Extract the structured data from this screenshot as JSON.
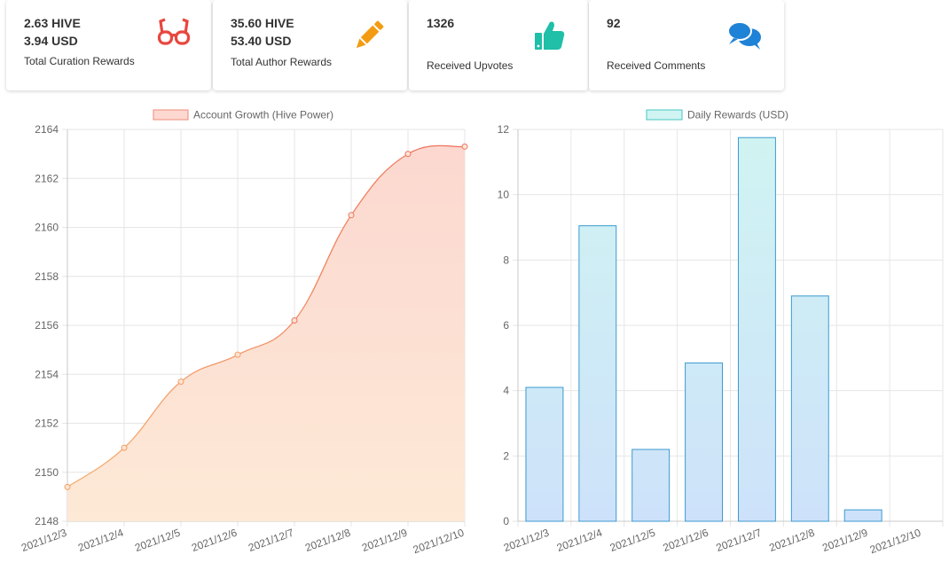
{
  "cards": {
    "curation": {
      "hive": "2.63 HIVE",
      "usd": "3.94 USD",
      "label": "Total Curation Rewards",
      "icon": "glasses-icon",
      "color": "#e8473f"
    },
    "author": {
      "hive": "35.60 HIVE",
      "usd": "53.40 USD",
      "label": "Total Author Rewards",
      "icon": "pencil-icon",
      "color": "#f39c12"
    },
    "upvotes": {
      "count": "1326",
      "label": "Received Upvotes",
      "icon": "thumbs-up-icon",
      "color": "#1fbfa8"
    },
    "comments": {
      "count": "92",
      "label": "Received Comments",
      "icon": "comments-icon",
      "color": "#1e82d6"
    }
  },
  "chart_data": [
    {
      "type": "area",
      "series_name": "Account Growth (Hive Power)",
      "categories": [
        "2021/12/3",
        "2021/12/4",
        "2021/12/5",
        "2021/12/6",
        "2021/12/7",
        "2021/12/8",
        "2021/12/9",
        "2021/12/10"
      ],
      "values": [
        2149.4,
        2151.0,
        2153.7,
        2154.8,
        2156.2,
        2160.5,
        2163.0,
        2163.3
      ],
      "ylim": [
        2148,
        2164
      ],
      "yticks": [
        2148,
        2150,
        2152,
        2154,
        2156,
        2158,
        2160,
        2162,
        2164
      ],
      "grid": true,
      "legend": "top",
      "line_color": "#f08060",
      "fill_top": "#fcd8d0",
      "fill_bottom": "#fde9d6"
    },
    {
      "type": "bar",
      "series_name": "Daily Rewards (USD)",
      "categories": [
        "2021/12/3",
        "2021/12/4",
        "2021/12/5",
        "2021/12/6",
        "2021/12/7",
        "2021/12/8",
        "2021/12/9",
        "2021/12/10"
      ],
      "values": [
        4.1,
        9.05,
        2.2,
        4.85,
        11.75,
        6.9,
        0.35,
        0
      ],
      "ylim": [
        0,
        12
      ],
      "yticks": [
        0,
        2,
        4,
        6,
        8,
        10,
        12
      ],
      "grid": true,
      "legend": "top",
      "bar_border": "#3a9ad0",
      "bar_fill_top": "#d0f4f2",
      "bar_fill_bottom": "#cde2fa",
      "legend_fill": "#d0f4f2",
      "legend_border": "#45c9c0"
    }
  ]
}
